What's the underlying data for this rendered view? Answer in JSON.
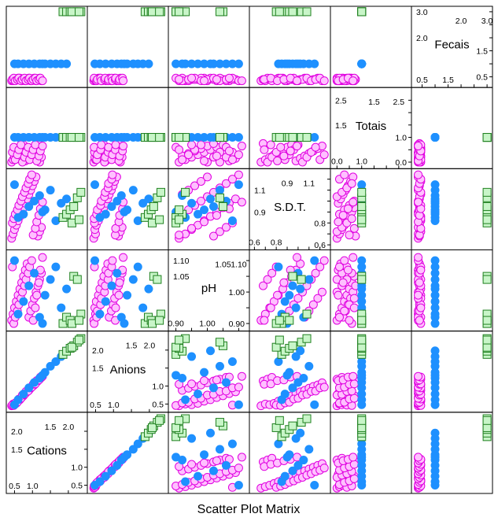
{
  "chart_data": {
    "type": "scatter-matrix",
    "title": "Scatter Plot Matrix",
    "layout": "lower-left diagonal (variables listed bottom-left to top-right)",
    "grid": false,
    "legend": "none",
    "variables": [
      {
        "name": "Cations",
        "range": [
          0.35,
          2.45
        ],
        "ticks_low": [
          "0.5",
          "1.0"
        ],
        "ticks_high": [
          "1.5",
          "2.0"
        ],
        "ticks_low_vals": [
          0.5,
          1.0
        ],
        "ticks_high_vals": [
          1.5,
          2.0
        ],
        "axis_ticks": [
          0.5,
          1.0,
          1.5,
          2.0
        ]
      },
      {
        "name": "Anions",
        "range": [
          0.35,
          2.45
        ],
        "ticks_low": [
          "0.5",
          "1.0"
        ],
        "ticks_high": [
          "1.5",
          "2.0"
        ],
        "ticks_low_vals": [
          0.5,
          1.0
        ],
        "ticks_high_vals": [
          1.5,
          2.0
        ],
        "axis_ticks": [
          0.5,
          1.0,
          1.5,
          2.0
        ]
      },
      {
        "name": "pH",
        "range": [
          0.885,
          1.125
        ],
        "ticks_low": [
          "0.90",
          "1.00"
        ],
        "ticks_high": [
          "1.05",
          "1.10"
        ],
        "ticks_low_vals": [
          0.9,
          1.0
        ],
        "ticks_high_vals": [
          1.05,
          1.1
        ],
        "axis_ticks": [
          0.9,
          0.95,
          1.0,
          1.05,
          1.1
        ]
      },
      {
        "name": "S.D.T.",
        "range": [
          0.58,
          1.27
        ],
        "ticks_low": [
          "0.6",
          "0.8"
        ],
        "ticks_high": [
          "0.9",
          "1.1"
        ],
        "ticks_low_vals": [
          0.6,
          0.8
        ],
        "ticks_high_vals": [
          0.9,
          1.1
        ],
        "axis_ticks": [
          0.6,
          0.7,
          0.8,
          0.9,
          1.0,
          1.1,
          1.2
        ]
      },
      {
        "name": "Totais",
        "range": [
          -0.15,
          2.9
        ],
        "ticks_low": [
          "0.0",
          "1.0"
        ],
        "ticks_high": [
          "1.5",
          "2.5"
        ],
        "ticks_low_vals": [
          0.0,
          1.0
        ],
        "ticks_high_vals": [
          1.5,
          2.5
        ],
        "axis_ticks": [
          0.0,
          0.5,
          1.0,
          1.5,
          2.0,
          2.5
        ]
      },
      {
        "name": "Fecais",
        "range": [
          0.2,
          3.1
        ],
        "ticks_low": [
          "0.5",
          "1.5"
        ],
        "ticks_high": [
          "2.0",
          "3.0"
        ],
        "ticks_low_vals": [
          0.5,
          1.5
        ],
        "ticks_high_vals": [
          2.0,
          3.0
        ],
        "axis_ticks": [
          0.5,
          1.0,
          1.5,
          2.0,
          2.5,
          3.0
        ]
      }
    ],
    "groups": [
      {
        "marker": "circle",
        "fill": "#ffc0ff",
        "stroke": "#e000e0",
        "points": [
          [
            0.42,
            0.45,
            0.91,
            0.66,
            0.0,
            0.35
          ],
          [
            0.46,
            0.5,
            0.93,
            0.7,
            0.1,
            0.35
          ],
          [
            0.5,
            0.48,
            0.95,
            0.74,
            0.2,
            0.4
          ],
          [
            0.55,
            0.52,
            0.97,
            0.78,
            0.3,
            0.4
          ],
          [
            0.6,
            0.58,
            0.99,
            0.82,
            0.4,
            0.45
          ],
          [
            0.65,
            0.62,
            1.01,
            0.86,
            0.5,
            0.45
          ],
          [
            0.7,
            0.68,
            1.03,
            0.9,
            0.6,
            0.35
          ],
          [
            0.75,
            0.73,
            1.05,
            0.94,
            0.7,
            0.4
          ],
          [
            0.8,
            0.79,
            1.07,
            0.98,
            0.05,
            0.35
          ],
          [
            0.85,
            0.84,
            1.09,
            1.02,
            0.15,
            0.4
          ],
          [
            0.9,
            0.88,
            0.92,
            1.06,
            0.25,
            0.45
          ],
          [
            0.95,
            0.94,
            0.94,
            1.1,
            0.35,
            0.35
          ],
          [
            1.0,
            0.99,
            0.96,
            1.14,
            0.45,
            0.4
          ],
          [
            1.05,
            1.03,
            0.98,
            1.18,
            0.55,
            0.45
          ],
          [
            1.1,
            1.09,
            1.0,
            1.22,
            0.65,
            0.35
          ],
          [
            1.15,
            1.14,
            1.02,
            0.68,
            0.75,
            0.4
          ],
          [
            1.2,
            1.19,
            1.04,
            0.72,
            0.0,
            0.45
          ],
          [
            1.25,
            1.24,
            1.06,
            0.76,
            0.2,
            0.35
          ],
          [
            0.44,
            0.47,
            1.08,
            0.8,
            0.4,
            0.4
          ],
          [
            0.48,
            0.46,
            0.9,
            0.84,
            0.6,
            0.45
          ],
          [
            0.52,
            0.53,
            0.92,
            0.88,
            0.1,
            0.35
          ],
          [
            0.58,
            0.55,
            0.94,
            0.92,
            0.3,
            0.4
          ],
          [
            0.62,
            0.64,
            0.96,
            0.96,
            0.5,
            0.45
          ],
          [
            0.68,
            0.66,
            0.98,
            1.0,
            0.7,
            0.35
          ],
          [
            0.72,
            0.75,
            1.0,
            1.04,
            0.0,
            0.4
          ],
          [
            0.78,
            0.77,
            1.02,
            1.08,
            0.2,
            0.45
          ],
          [
            0.82,
            0.85,
            1.04,
            1.12,
            0.4,
            0.35
          ],
          [
            0.88,
            0.86,
            1.06,
            1.16,
            0.6,
            0.4
          ],
          [
            0.92,
            0.95,
            1.08,
            1.2,
            0.1,
            0.45
          ],
          [
            0.98,
            0.97,
            1.1,
            1.24,
            0.3,
            0.35
          ],
          [
            1.02,
            1.05,
            0.91,
            0.69,
            0.5,
            0.4
          ],
          [
            1.08,
            1.06,
            0.95,
            0.75,
            0.7,
            0.45
          ],
          [
            1.12,
            1.15,
            0.99,
            0.81,
            0.05,
            0.35
          ],
          [
            1.18,
            1.17,
            1.03,
            0.87,
            0.25,
            0.4
          ],
          [
            1.22,
            1.25,
            1.07,
            0.93,
            0.45,
            0.45
          ],
          [
            1.28,
            1.27,
            1.11,
            0.99,
            0.65,
            0.35
          ]
        ]
      },
      {
        "marker": "filled-circle",
        "fill": "#1e90ff",
        "stroke": "#1e90ff",
        "points": [
          [
            0.6,
            0.62,
            0.93,
            0.85,
            1.0,
            1.0
          ],
          [
            0.75,
            0.78,
            0.97,
            0.88,
            1.0,
            1.0
          ],
          [
            0.9,
            0.95,
            1.02,
            0.95,
            1.0,
            1.0
          ],
          [
            1.05,
            1.1,
            1.06,
            1.0,
            1.0,
            1.0
          ],
          [
            1.2,
            1.22,
            0.92,
            1.05,
            1.0,
            1.0
          ],
          [
            1.35,
            1.38,
            0.99,
            0.92,
            1.0,
            1.0
          ],
          [
            1.5,
            1.55,
            1.04,
            1.1,
            1.0,
            1.0
          ],
          [
            1.65,
            1.68,
            1.08,
            0.82,
            1.0,
            1.0
          ],
          [
            1.8,
            1.82,
            0.95,
            0.98,
            1.0,
            1.0
          ],
          [
            0.5,
            0.48,
            1.1,
            1.15,
            1.0,
            1.0
          ],
          [
            1.28,
            1.3,
            0.9,
            0.9,
            1.0,
            1.0
          ],
          [
            1.95,
            1.98,
            1.01,
            1.02,
            1.0,
            1.0
          ]
        ]
      },
      {
        "marker": "square",
        "fill": "#c8f5c8",
        "stroke": "#208020",
        "points": [
          [
            1.85,
            1.88,
            0.9,
            0.85,
            1.0,
            3.0
          ],
          [
            1.95,
            1.97,
            0.92,
            0.88,
            1.0,
            3.0
          ],
          [
            2.05,
            2.05,
            0.91,
            0.92,
            1.0,
            3.0
          ],
          [
            2.15,
            2.12,
            1.05,
            0.95,
            1.0,
            3.0
          ],
          [
            2.25,
            2.22,
            1.04,
            1.03,
            1.0,
            3.0
          ],
          [
            2.35,
            2.32,
            0.93,
            1.08,
            1.0,
            3.0
          ],
          [
            2.1,
            2.08,
            0.9,
            0.8,
            1.0,
            3.0
          ],
          [
            2.3,
            2.28,
            0.91,
            0.83,
            1.0,
            3.0
          ]
        ]
      }
    ]
  }
}
